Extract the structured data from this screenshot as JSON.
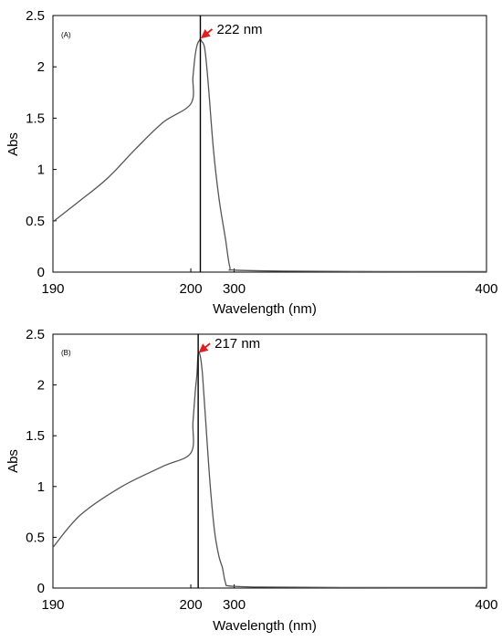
{
  "chart_data": [
    {
      "type": "line",
      "panel_label": "(A)",
      "xlabel": "Wavelength (nm)",
      "ylabel": "Abs",
      "x_ticks": [
        190,
        200,
        300,
        400
      ],
      "y_ticks": [
        "0",
        "0.5",
        "1",
        "1.5",
        "2",
        "2.5"
      ],
      "ylim": [
        0,
        2.5
      ],
      "grid": false,
      "peak": {
        "label": "222 nm",
        "x": 222,
        "y": 2.27
      },
      "series": [
        {
          "color": "#555555",
          "points": [
            [
              190,
              0.49
            ],
            [
              192,
              0.7
            ],
            [
              194,
              0.92
            ],
            [
              196,
              1.2
            ],
            [
              198,
              1.46
            ],
            [
              200,
              1.64
            ],
            [
              205,
              1.9
            ],
            [
              210,
              2.11
            ],
            [
              215,
              2.22
            ],
            [
              220,
              2.26
            ],
            [
              222,
              2.27
            ],
            [
              225,
              2.25
            ],
            [
              232,
              2.18
            ],
            [
              240,
              1.85
            ],
            [
              252,
              1.2
            ],
            [
              265,
              0.72
            ],
            [
              280,
              0.32
            ],
            [
              290,
              0.05
            ],
            [
              300,
              0.02
            ],
            [
              320,
              0.01
            ],
            [
              360,
              0.005
            ],
            [
              400,
              0.005
            ]
          ]
        }
      ]
    },
    {
      "type": "line",
      "panel_label": "(B)",
      "xlabel": "Wavelength (nm)",
      "ylabel": "Abs",
      "x_ticks": [
        190,
        200,
        300,
        400
      ],
      "y_ticks": [
        "0",
        "0.5",
        "1",
        "1.5",
        "2",
        "2.5"
      ],
      "ylim": [
        0,
        2.5
      ],
      "grid": false,
      "peak": {
        "label": "217 nm",
        "x": 217,
        "y": 2.31
      },
      "series": [
        {
          "color": "#555555",
          "points": [
            [
              190,
              0.4
            ],
            [
              192,
              0.72
            ],
            [
              195,
              1.0
            ],
            [
              198,
              1.2
            ],
            [
              200,
              1.33
            ],
            [
              205,
              1.63
            ],
            [
              210,
              1.92
            ],
            [
              214,
              2.1
            ],
            [
              217,
              2.31
            ],
            [
              222,
              2.28
            ],
            [
              227,
              2.1
            ],
            [
              235,
              1.6
            ],
            [
              245,
              1.0
            ],
            [
              255,
              0.55
            ],
            [
              265,
              0.31
            ],
            [
              273,
              0.2
            ],
            [
              280,
              0.05
            ],
            [
              290,
              0.02
            ],
            [
              310,
              0.01
            ],
            [
              350,
              0.005
            ],
            [
              400,
              0.005
            ]
          ]
        }
      ]
    }
  ]
}
